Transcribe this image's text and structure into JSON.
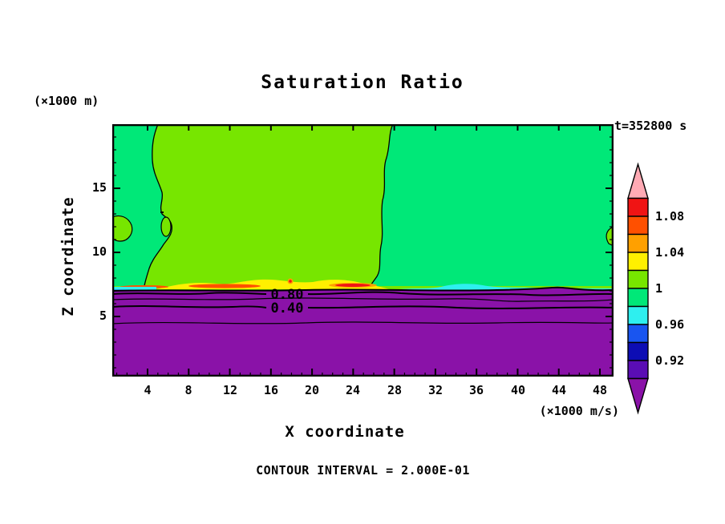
{
  "title": "Saturation Ratio",
  "annotations": {
    "time": "t=352800 s",
    "footer": "CONTOUR INTERVAL = 2.000E-01"
  },
  "y_axis": {
    "label": "Z coordinate",
    "unit": "(×1000 m)",
    "ticks": [
      "5",
      "10",
      "15"
    ]
  },
  "x_axis": {
    "label": "X coordinate",
    "unit": "(×1000 m/s)",
    "ticks": [
      "4",
      "8",
      "12",
      "16",
      "20",
      "24",
      "28",
      "32",
      "36",
      "40",
      "44",
      "48"
    ]
  },
  "colorbar": {
    "labels": [
      "1.08",
      "1.04",
      "1",
      "0.96",
      "0.92"
    ]
  },
  "plot_labels": {
    "c080": "0.80",
    "c040": "0.40"
  },
  "palette": {
    "pink": "#FFAAB4",
    "red": "#F01414",
    "orangered": "#FF5000",
    "orange": "#FFA000",
    "yellow": "#FFF000",
    "chartreuse": "#77E600",
    "springgreen": "#00E878",
    "cyan": "#2EEFEF",
    "blue": "#1955F0",
    "navy": "#0D0DB4",
    "darkviolet": "#5A0DB4",
    "purple": "#8A12A8",
    "frame": "#000000"
  },
  "chart_data": {
    "type": "filled_contour",
    "title": "Saturation Ratio",
    "time_label": "t=352800 s",
    "xlabel": "X coordinate",
    "x_unit": "×1000 m/s",
    "ylabel": "Z coordinate",
    "y_unit": "×1000 m",
    "x_ticks": [
      4,
      8,
      12,
      16,
      20,
      24,
      28,
      32,
      36,
      40,
      44,
      48
    ],
    "y_ticks": [
      5,
      10,
      15
    ],
    "xlim": [
      0,
      49
    ],
    "ylim": [
      0,
      19.7
    ],
    "grid": false,
    "contour_interval": 0.2,
    "contour_interval_label": "CONTOUR INTERVAL = 2.000E-01",
    "inline_contour_labels": [
      0.8,
      0.4
    ],
    "line_contours_in_lower_layer": [
      0.8,
      0.6,
      0.4,
      0.2
    ],
    "colorbar": {
      "tick_labels": [
        1.08,
        1.04,
        1,
        0.96,
        0.92
      ],
      "levels": [
        0.9,
        0.92,
        0.94,
        0.96,
        0.98,
        1.0,
        1.02,
        1.04,
        1.06,
        1.08,
        1.1
      ],
      "segments_top_to_bottom": [
        {
          "color": "#FFAAB4",
          "range": "> 1.10"
        },
        {
          "color": "#F01414",
          "range": "1.08 - 1.10"
        },
        {
          "color": "#FF5000",
          "range": "1.06 - 1.08"
        },
        {
          "color": "#FFA000",
          "range": "1.04 - 1.06"
        },
        {
          "color": "#FFF000",
          "range": "1.02 - 1.04"
        },
        {
          "color": "#77E600",
          "range": "1.00 - 1.02"
        },
        {
          "color": "#00E878",
          "range": "0.98 - 1.00"
        },
        {
          "color": "#2EEFEF",
          "range": "0.96 - 0.98"
        },
        {
          "color": "#1955F0",
          "range": "0.94 - 0.96"
        },
        {
          "color": "#0D0DB4",
          "range": "0.92 - 0.94"
        },
        {
          "color": "#5A0DB4",
          "range": "0.90 - 0.92"
        },
        {
          "color": "#8A12A8",
          "range": "< 0.90"
        }
      ],
      "position": "right"
    },
    "regions": [
      {
        "area": "upper left strip and entire upper right half (z ~ 7-20)",
        "value": "0.98 - 1.00 (spring green)"
      },
      {
        "area": "large upper center-left lobe (x ~ 4-28, z ~ 7-20)",
        "value": "1.00 - 1.02 (chartreuse)"
      },
      {
        "area": "thin band at z ~ 7.3, left half",
        "value": "1.02 - 1.10 maxima (yellow/orange/red streaks)"
      },
      {
        "area": "thin band at z ~ 7, right half",
        "value": "0.92 - 0.98 minima (cyan/blue)"
      },
      {
        "area": "lower layer z < 7",
        "value": "< 0.90 (purple), falling through 0.8, 0.6, 0.4, 0.2 toward bottom"
      }
    ]
  }
}
